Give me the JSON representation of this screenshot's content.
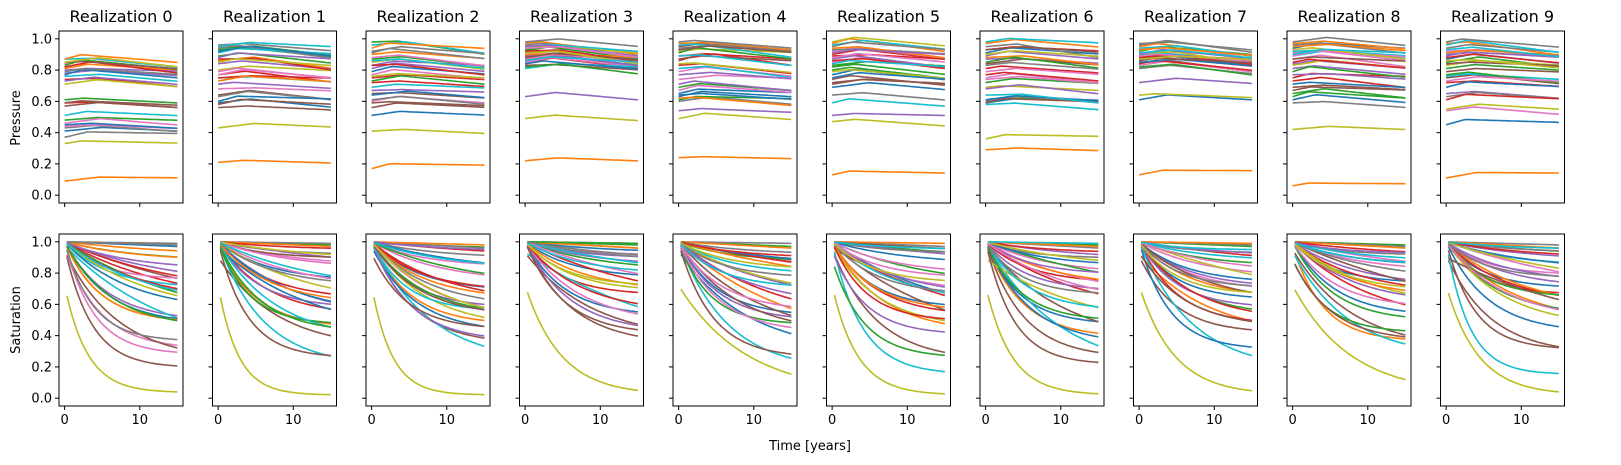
{
  "figure": {
    "xlabel": "Time [years]",
    "row_labels": [
      "Pressure",
      "Saturation"
    ]
  },
  "chart_data": {
    "type": "line",
    "x_range": [
      0,
      15
    ],
    "xlim": [
      -0.75,
      15.75
    ],
    "ylim": [
      -0.05,
      1.05
    ],
    "xticks": [
      0,
      10
    ],
    "yticks": [
      0.0,
      0.2,
      0.4,
      0.6,
      0.8,
      1.0
    ],
    "grid": false,
    "legend": "none",
    "colors": [
      "#1f77b4",
      "#ff7f0e",
      "#2ca02c",
      "#d62728",
      "#9467bd",
      "#8c564b",
      "#e377c2",
      "#7f7f7f",
      "#bcbd22",
      "#17becf"
    ],
    "panels": [
      {
        "title": "Realization 0",
        "pressure": [
          0.42,
          0.1,
          0.49,
          0.6,
          0.79,
          0.58,
          0.85,
          0.44,
          0.34,
          0.52,
          0.78,
          0.82,
          0.62,
          0.75,
          0.81,
          0.6,
          0.45,
          0.38,
          0.72,
          0.88,
          0.46,
          0.88,
          0.84,
          0.83,
          0.74,
          0.86,
          0.47,
          0.8,
          0.86,
          0.77
        ],
        "saturation": [
          0.97,
          0.9,
          0.88,
          0.6,
          0.83,
          0.55,
          0.77,
          0.98,
          0.09,
          0.72,
          0.58,
          0.88,
          0.45,
          0.62,
          0.52,
          0.24,
          0.35,
          0.99,
          0.52,
          0.3,
          0.5,
          0.51,
          0.48,
          0.66,
          0.72,
          0.28,
          0.32,
          0.4,
          0.55,
          0.6
        ]
      },
      {
        "title": "Realization 1",
        "pressure": [
          0.6,
          0.22,
          0.94,
          0.78,
          0.72,
          0.65,
          0.78,
          0.64,
          0.44,
          0.76,
          0.61,
          0.87,
          0.95,
          0.76,
          0.85,
          0.57,
          0.69,
          0.95,
          0.81,
          0.92,
          0.93,
          0.74,
          0.9,
          0.88,
          0.89,
          0.59,
          0.8,
          0.97,
          0.86,
          0.96
        ],
        "saturation": [
          0.76,
          0.48,
          0.98,
          0.55,
          0.6,
          0.35,
          0.85,
          0.99,
          0.06,
          0.25,
          0.43,
          0.97,
          0.5,
          0.65,
          0.52,
          0.3,
          0.7,
          0.92,
          0.6,
          0.4,
          0.55,
          0.62,
          0.45,
          0.95,
          0.8,
          0.9,
          0.83,
          0.73,
          0.88,
          0.68
        ]
      },
      {
        "title": "Realization 2",
        "pressure": [
          0.52,
          0.18,
          0.99,
          0.73,
          0.82,
          0.66,
          0.61,
          0.62,
          0.42,
          0.7,
          0.8,
          0.91,
          0.88,
          0.76,
          0.84,
          0.6,
          0.78,
          0.92,
          0.86,
          0.97,
          0.65,
          0.95,
          0.74,
          0.84,
          0.68,
          0.57,
          0.89,
          0.93,
          0.77,
          0.87
        ],
        "saturation": [
          0.7,
          0.5,
          0.95,
          0.62,
          0.6,
          0.38,
          0.75,
          0.96,
          0.06,
          0.26,
          0.45,
          0.98,
          0.55,
          0.7,
          0.4,
          0.47,
          0.85,
          0.9,
          0.48,
          0.58,
          0.8,
          0.65,
          0.72,
          0.88,
          0.93,
          0.55,
          0.52,
          0.6,
          0.5,
          0.83
        ]
      },
      {
        "title": "Realization 3",
        "pressure": [
          0.88,
          0.23,
          0.93,
          0.86,
          0.64,
          0.9,
          0.86,
          0.92,
          0.5,
          0.82,
          0.87,
          0.98,
          0.94,
          0.89,
          0.9,
          0.84,
          0.88,
          0.97,
          0.95,
          0.96,
          0.85,
          0.91,
          0.83,
          0.93,
          0.96,
          0.89,
          0.95,
          0.99,
          0.92,
          0.87
        ],
        "saturation": [
          0.78,
          0.7,
          0.98,
          0.68,
          0.85,
          0.4,
          0.92,
          0.99,
          0.07,
          0.35,
          0.55,
          0.96,
          0.82,
          0.6,
          0.9,
          0.44,
          0.5,
          0.88,
          0.7,
          0.75,
          0.93,
          0.96,
          0.99,
          0.57,
          0.45,
          0.38,
          0.65,
          0.86,
          0.73,
          0.8
        ]
      },
      {
        "title": "Realization 4",
        "pressure": [
          0.66,
          0.25,
          0.7,
          0.9,
          0.72,
          0.96,
          0.8,
          0.61,
          0.5,
          0.82,
          0.64,
          0.98,
          0.62,
          0.88,
          0.55,
          0.87,
          0.75,
          0.95,
          0.93,
          0.97,
          0.65,
          0.63,
          0.92,
          0.84,
          0.78,
          0.94,
          0.68,
          0.99,
          0.85,
          0.9
        ],
        "saturation": [
          0.55,
          0.35,
          0.97,
          0.48,
          0.62,
          0.4,
          0.75,
          0.99,
          0.07,
          0.22,
          0.33,
          0.96,
          0.88,
          0.7,
          0.52,
          0.44,
          0.58,
          0.92,
          0.64,
          0.8,
          0.85,
          0.68,
          0.5,
          0.9,
          0.6,
          0.3,
          0.45,
          0.78,
          0.83,
          0.72
        ]
      },
      {
        "title": "Realization 5",
        "pressure": [
          0.7,
          0.14,
          0.81,
          0.91,
          0.52,
          0.75,
          0.86,
          0.65,
          0.48,
          0.6,
          0.78,
          0.98,
          0.84,
          0.9,
          0.88,
          0.72,
          0.93,
          0.94,
          0.8,
          0.97,
          0.76,
          0.95,
          0.83,
          0.87,
          0.92,
          0.73,
          0.89,
          0.96,
          0.99,
          0.85
        ],
        "saturation": [
          0.6,
          0.45,
          0.88,
          0.4,
          0.82,
          0.28,
          0.7,
          0.97,
          0.06,
          0.2,
          0.5,
          0.99,
          0.3,
          0.55,
          0.66,
          0.35,
          0.78,
          0.93,
          0.48,
          0.62,
          0.86,
          0.58,
          0.72,
          0.52,
          0.44,
          0.9,
          0.8,
          0.68,
          0.75,
          0.95
        ]
      },
      {
        "title": "Realization 6",
        "pressure": [
          0.6,
          0.3,
          0.62,
          0.94,
          0.88,
          0.85,
          0.76,
          0.61,
          0.37,
          0.59,
          0.92,
          0.98,
          0.73,
          0.82,
          0.9,
          0.6,
          0.8,
          0.96,
          0.7,
          0.99,
          0.62,
          0.89,
          0.86,
          0.78,
          0.69,
          0.94,
          0.75,
          0.84,
          0.91,
          0.65
        ],
        "saturation": [
          0.5,
          0.42,
          0.98,
          0.55,
          0.7,
          0.36,
          0.8,
          0.96,
          0.07,
          0.2,
          0.38,
          0.97,
          0.62,
          0.75,
          0.88,
          0.3,
          0.66,
          0.9,
          0.46,
          0.58,
          0.85,
          0.72,
          0.52,
          0.93,
          0.8,
          0.26,
          0.6,
          0.68,
          0.83,
          0.99
        ]
      },
      {
        "title": "Realization 7",
        "pressure": [
          0.62,
          0.14,
          0.9,
          0.88,
          0.73,
          0.86,
          0.84,
          0.82,
          0.65,
          0.9,
          0.87,
          0.96,
          0.93,
          0.85,
          0.89,
          0.88,
          0.91,
          0.97,
          0.92,
          0.95,
          0.86,
          0.94,
          0.83,
          0.89,
          0.91,
          0.87,
          0.9,
          0.98,
          0.88,
          0.92
        ],
        "saturation": [
          0.65,
          0.42,
          0.97,
          0.5,
          0.72,
          0.45,
          0.78,
          0.98,
          0.06,
          0.22,
          0.35,
          0.99,
          0.55,
          0.82,
          0.6,
          0.48,
          0.7,
          0.93,
          0.58,
          0.88,
          0.75,
          0.66,
          0.85,
          0.52,
          0.9,
          0.62,
          0.8,
          0.72,
          0.68,
          0.95
        ]
      },
      {
        "title": "Realization 8",
        "pressure": [
          0.62,
          0.07,
          0.66,
          0.74,
          0.85,
          0.7,
          0.88,
          0.6,
          0.43,
          0.9,
          0.95,
          0.98,
          0.64,
          0.76,
          0.82,
          0.68,
          0.92,
          0.97,
          0.84,
          0.93,
          0.72,
          0.96,
          0.8,
          0.86,
          0.78,
          0.88,
          0.9,
          0.99,
          0.94,
          0.91
        ],
        "saturation": [
          0.75,
          0.4,
          0.98,
          0.5,
          0.62,
          0.35,
          0.82,
          0.97,
          0.07,
          0.3,
          0.55,
          0.96,
          0.45,
          0.68,
          0.72,
          0.4,
          0.8,
          0.92,
          0.58,
          0.88,
          0.85,
          0.66,
          0.52,
          0.9,
          0.93,
          0.48,
          0.6,
          0.75,
          0.7,
          0.86
        ]
      },
      {
        "title": "Realization 9",
        "pressure": [
          0.46,
          0.12,
          0.82,
          0.73,
          0.66,
          0.76,
          0.55,
          0.64,
          0.56,
          0.77,
          0.88,
          0.98,
          0.86,
          0.62,
          0.9,
          0.8,
          0.93,
          0.95,
          0.84,
          0.97,
          0.7,
          0.92,
          0.78,
          0.89,
          0.91,
          0.85,
          0.74,
          0.99,
          0.87,
          0.94
        ],
        "saturation": [
          0.72,
          0.5,
          0.9,
          0.62,
          0.88,
          0.32,
          0.8,
          0.98,
          0.06,
          0.2,
          0.45,
          0.96,
          0.55,
          0.68,
          0.75,
          0.35,
          0.6,
          0.93,
          0.48,
          0.85,
          0.82,
          0.58,
          0.66,
          0.9,
          0.72,
          0.4,
          0.52,
          0.78,
          0.7,
          0.95
        ]
      }
    ]
  }
}
